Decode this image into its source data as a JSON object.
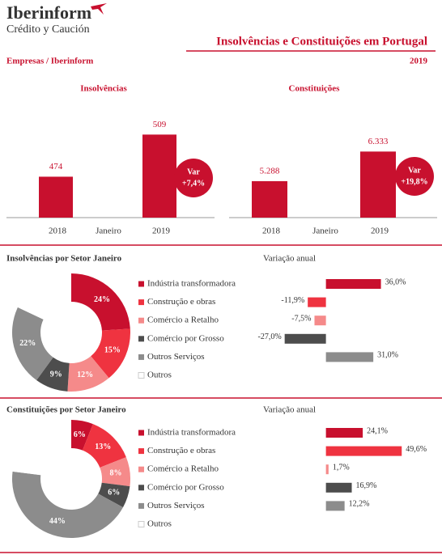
{
  "header": {
    "brand": "Iberinform",
    "tagline": "Crédito y Caución",
    "title": "Insolvências e Constituições em Portugal",
    "source": "Empresas / Iberinform",
    "year": "2019"
  },
  "chart_data": [
    {
      "type": "bar",
      "title": "Insolvências",
      "categories": [
        "2018",
        "2019"
      ],
      "x_label": "Janeiro",
      "values": [
        474,
        509
      ],
      "value_labels": [
        "474",
        "509"
      ],
      "color": "#c8102e",
      "ylim": [
        440,
        520
      ],
      "change": {
        "label": "Var",
        "value": 7.4,
        "value_label": "+7,4%"
      }
    },
    {
      "type": "bar",
      "title": "Constituições",
      "categories": [
        "2018",
        "2019"
      ],
      "x_label": "Janeiro",
      "values": [
        5288,
        6333
      ],
      "value_labels": [
        "5.288",
        "6.333"
      ],
      "color": "#c8102e",
      "ylim": [
        4000,
        7400
      ],
      "change": {
        "label": "Var",
        "value": 19.8,
        "value_label": "+19,8%"
      }
    },
    {
      "type": "donut",
      "title": "Insolvências por Setor Janeiro",
      "categories": [
        "Indústria transformadora",
        "Construção e obras",
        "Comércio a Retalho",
        "Comércio por Grosso",
        "Outros Serviços",
        "Outros"
      ],
      "values": [
        24,
        15,
        12,
        9,
        22,
        18
      ],
      "value_labels": [
        "24%",
        "15%",
        "12%",
        "9%",
        "22%",
        null
      ],
      "colors": [
        "#c8102e",
        "#ef3340",
        "#f58a8a",
        "#4d4d4d",
        "#8c8c8c",
        "#ffffff"
      ]
    },
    {
      "type": "hbar",
      "title": "Variação anual",
      "values": [
        36.0,
        -11.9,
        -7.5,
        -27.0,
        31.0
      ],
      "value_labels": [
        "36,0%",
        "-11,9%",
        "-7,5%",
        "-27,0%",
        "31,0%"
      ],
      "xlim": [
        -30,
        50
      ]
    },
    {
      "type": "donut",
      "title": "Constituições por Setor Janeiro",
      "categories": [
        "Indústria transformadora",
        "Construção e obras",
        "Comércio a Retalho",
        "Comércio por Grosso",
        "Outros Serviços",
        "Outros"
      ],
      "values": [
        6,
        13,
        8,
        6,
        44,
        23
      ],
      "value_labels": [
        "6%",
        "13%",
        "8%",
        "6%",
        "44%",
        null
      ],
      "colors": [
        "#c8102e",
        "#ef3340",
        "#f58a8a",
        "#4d4d4d",
        "#8c8c8c",
        "#ffffff"
      ]
    },
    {
      "type": "hbar",
      "title": "Variação anual",
      "values": [
        24.1,
        49.6,
        1.7,
        16.9,
        12.2
      ],
      "value_labels": [
        "24,1%",
        "49,6%",
        "1,7%",
        "16,9%",
        "12,2%"
      ],
      "xlim": [
        -30,
        50
      ]
    }
  ]
}
